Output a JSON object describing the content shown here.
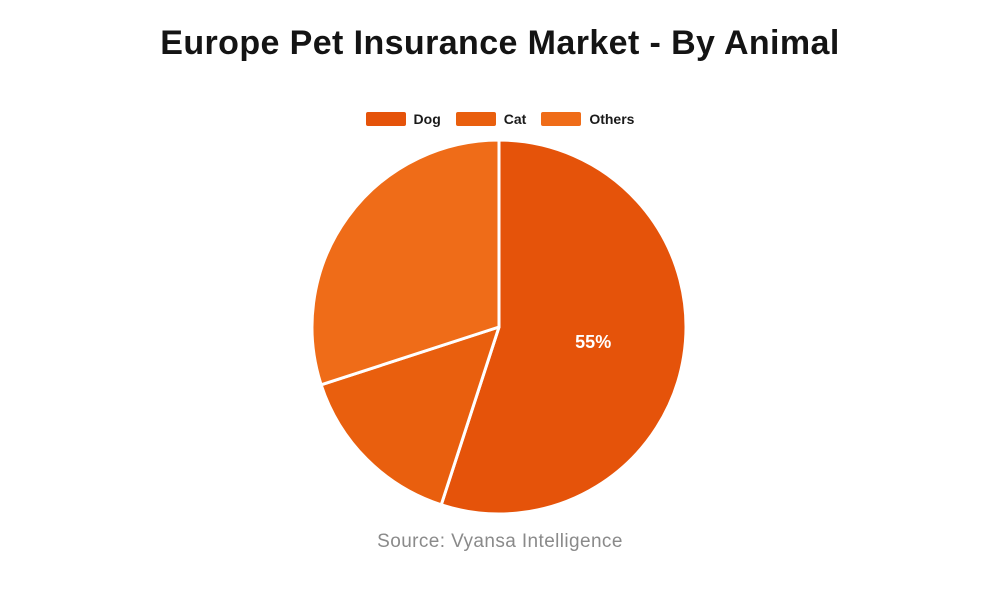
{
  "chart_data": {
    "type": "pie",
    "title": "Europe Pet Insurance Market - By Animal",
    "slices": [
      {
        "name": "Dog",
        "value": 55,
        "label": "55%",
        "color": "#e5530a"
      },
      {
        "name": "Cat",
        "value": 15,
        "label": "",
        "color": "#e95f0e"
      },
      {
        "name": "Others",
        "value": 30,
        "label": "",
        "color": "#ef6c18"
      }
    ],
    "start_angle_deg": 0,
    "direction": "clockwise",
    "legend_position": "top",
    "label_color": "#ffffff",
    "source": "Source: Vyansa Intelligence"
  }
}
